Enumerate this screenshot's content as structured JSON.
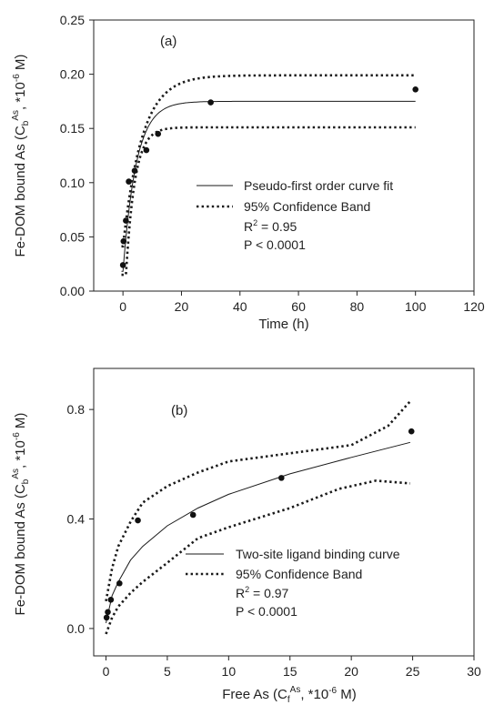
{
  "chart_data": [
    {
      "type": "scatter",
      "panel_label": "(a)",
      "xlabel": "Time (h)",
      "ylabel": {
        "prefix": "Fe-DOM bound As (C",
        "sub": "b",
        "sup": "As",
        "mid": ", *10",
        "sup2": "-6",
        "suffix": " M)"
      },
      "xlim": [
        -10,
        120
      ],
      "ylim": [
        0,
        0.25
      ],
      "xticks": [
        0,
        20,
        40,
        60,
        80,
        100,
        120
      ],
      "yticks": [
        "0.00",
        "0.05",
        "0.10",
        "0.15",
        "0.20",
        "0.25"
      ],
      "points": [
        {
          "x": 0,
          "y": 0.024
        },
        {
          "x": 0.2,
          "y": 0.046
        },
        {
          "x": 1,
          "y": 0.065
        },
        {
          "x": 2,
          "y": 0.101
        },
        {
          "x": 4,
          "y": 0.111
        },
        {
          "x": 8,
          "y": 0.13
        },
        {
          "x": 12,
          "y": 0.145
        },
        {
          "x": 30,
          "y": 0.174
        },
        {
          "x": 100,
          "y": 0.186
        }
      ],
      "fit": {
        "model": "pseudo-first-order",
        "ymax": 0.175,
        "k": 0.22
      },
      "band": {
        "upper_max": 0.199,
        "upper_k": 0.155,
        "lower_max": 0.151,
        "lower_k": 0.33,
        "lower_shift": 0.7
      },
      "legend": [
        {
          "label": "Pseudo-first order curve fit",
          "style": "solid"
        },
        {
          "label": "95% Confidence Band",
          "style": "dotted"
        }
      ],
      "stats": {
        "r2_prefix": "R",
        "r2_sup": "2",
        "r2_value": " = 0.95",
        "p": "P < 0.0001"
      }
    },
    {
      "type": "scatter",
      "panel_label": "(b)",
      "xlabel": {
        "prefix": "Free As (C",
        "sub": "f",
        "sup": "As",
        "mid": ", *10",
        "sup2": "-6",
        "suffix": " M)"
      },
      "ylabel": {
        "prefix": "Fe-DOM bound As (C",
        "sub": "b",
        "sup": "As",
        "mid": ", *10",
        "sup2": "-6",
        "suffix": " M)"
      },
      "xlim": [
        -1,
        30
      ],
      "ylim": [
        -0.1,
        0.95
      ],
      "xticks": [
        0,
        5,
        10,
        15,
        20,
        25,
        30
      ],
      "yticks": [
        "0.0",
        "0.4",
        "0.8"
      ],
      "points": [
        {
          "x": 0.05,
          "y": 0.04
        },
        {
          "x": 0.15,
          "y": 0.06
        },
        {
          "x": 0.4,
          "y": 0.105
        },
        {
          "x": 1.1,
          "y": 0.165
        },
        {
          "x": 2.6,
          "y": 0.395
        },
        {
          "x": 7.1,
          "y": 0.415
        },
        {
          "x": 14.3,
          "y": 0.55
        },
        {
          "x": 24.9,
          "y": 0.72
        }
      ],
      "fit_points": [
        [
          0,
          0.02
        ],
        [
          0.5,
          0.12
        ],
        [
          1,
          0.17
        ],
        [
          2,
          0.25
        ],
        [
          3,
          0.3
        ],
        [
          5,
          0.375
        ],
        [
          7.5,
          0.44
        ],
        [
          10,
          0.49
        ],
        [
          15,
          0.565
        ],
        [
          20,
          0.625
        ],
        [
          24.8,
          0.68
        ]
      ],
      "band_upper": [
        [
          0,
          0.1
        ],
        [
          0.5,
          0.22
        ],
        [
          1,
          0.3
        ],
        [
          2,
          0.39
        ],
        [
          3,
          0.46
        ],
        [
          5,
          0.52
        ],
        [
          7.5,
          0.57
        ],
        [
          10,
          0.61
        ],
        [
          15,
          0.64
        ],
        [
          20,
          0.67
        ],
        [
          23,
          0.74
        ],
        [
          24.8,
          0.83
        ]
      ],
      "band_lower": [
        [
          0,
          -0.02
        ],
        [
          0.5,
          0.04
        ],
        [
          1,
          0.08
        ],
        [
          2,
          0.13
        ],
        [
          3,
          0.17
        ],
        [
          5,
          0.24
        ],
        [
          7.5,
          0.33
        ],
        [
          10,
          0.37
        ],
        [
          15,
          0.44
        ],
        [
          19,
          0.51
        ],
        [
          22,
          0.54
        ],
        [
          24.8,
          0.53
        ]
      ],
      "legend": [
        {
          "label": "Two-site ligand binding curve",
          "style": "solid"
        },
        {
          "label": "95% Confidence Band",
          "style": "dotted"
        }
      ],
      "stats": {
        "r2_prefix": "R",
        "r2_sup": "2",
        "r2_value": " = 0.97",
        "p": "P < 0.0001"
      }
    }
  ],
  "colors": {
    "line": "#1a1a1a",
    "point": "#111111",
    "axis": "#222222"
  }
}
